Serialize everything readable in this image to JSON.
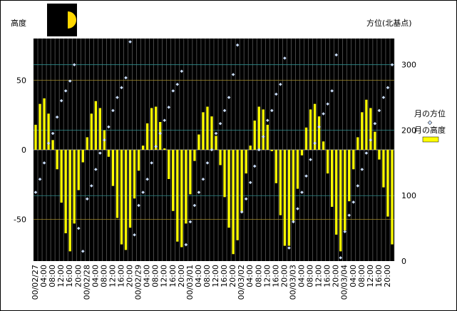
{
  "chart_data": {
    "type": "bar",
    "title": "",
    "ylabel_left": "高度",
    "ylabel_right": "方位(北基点)",
    "ylim_left": [
      -80,
      80
    ],
    "ylim_right": [
      0,
      340
    ],
    "yticks_left": [
      "50",
      "0",
      "-50"
    ],
    "yticks_left_values": [
      50,
      0,
      -50
    ],
    "yticks_right": [
      "300",
      "200",
      "100",
      "0"
    ],
    "yticks_right_values": [
      300,
      200,
      100,
      0
    ],
    "x_tick_labels": [
      "00/02/27",
      "04:00",
      "08:00",
      "12:00",
      "16:00",
      "20:00",
      "00/02/28",
      "04:00",
      "08:00",
      "12:00",
      "16:00",
      "20:00",
      "00/02/29",
      "04:00",
      "08:00",
      "12:00",
      "16:00",
      "20:00",
      "00/03/01",
      "04:00",
      "08:00",
      "12:00",
      "16:00",
      "20:00",
      "00/03/02",
      "04:00",
      "08:00",
      "12:00",
      "16:00",
      "20:00",
      "00/03/03",
      "04:00",
      "08:00",
      "12:00",
      "16:00",
      "20:00",
      "00/03/04",
      "04:00",
      "08:00",
      "12:00",
      "16:00",
      "20:00"
    ],
    "legend": {
      "placement": "right",
      "azimuth_label": "月の方位",
      "altitude_label": "月の高度"
    },
    "series": [
      {
        "name": "月の高度",
        "type": "bar",
        "axis": "left",
        "color": "#ffff00",
        "values": [
          18,
          33,
          37,
          26,
          7,
          -14,
          -38,
          -60,
          -73,
          -53,
          -29,
          -9,
          9,
          26,
          35,
          30,
          14,
          -5,
          -26,
          -49,
          -68,
          -72,
          -56,
          -35,
          -15,
          3,
          19,
          30,
          31,
          20,
          1,
          -21,
          -44,
          -66,
          -70,
          -53,
          -32,
          -8,
          11,
          27,
          31,
          24,
          10,
          -11,
          -34,
          -56,
          -75,
          -65,
          -45,
          -17,
          3,
          21,
          31,
          29,
          18,
          -1,
          -24,
          -47,
          -69,
          -69,
          -51,
          -28,
          -4,
          16,
          29,
          33,
          24,
          6,
          -17,
          -41,
          -61,
          -73,
          -58,
          -37,
          -14,
          9,
          27,
          36,
          30,
          13,
          -7,
          -27,
          -48,
          -68
        ]
      },
      {
        "name": "月の方位",
        "type": "scatter",
        "axis": "right",
        "color": "#cce0ff",
        "values": [
          105,
          125,
          150,
          180,
          195,
          220,
          245,
          260,
          275,
          300,
          50,
          15,
          95,
          115,
          140,
          165,
          185,
          205,
          230,
          250,
          265,
          280,
          335,
          40,
          85,
          105,
          125,
          150,
          175,
          195,
          215,
          235,
          260,
          270,
          290,
          25,
          60,
          85,
          105,
          125,
          150,
          170,
          195,
          210,
          230,
          250,
          285,
          330,
          75,
          95,
          120,
          145,
          170,
          190,
          215,
          230,
          255,
          270,
          310,
          20,
          60,
          80,
          105,
          130,
          155,
          180,
          205,
          225,
          240,
          260,
          315,
          5,
          45,
          70,
          90,
          115,
          140,
          165,
          185,
          210,
          230,
          250,
          265,
          300
        ]
      }
    ],
    "moon_phase_icon": "half-moon-icon"
  }
}
